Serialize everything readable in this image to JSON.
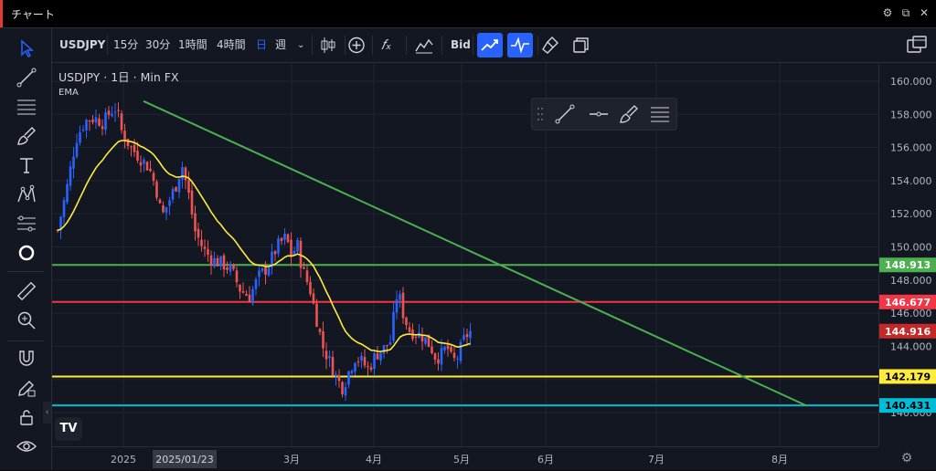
{
  "window": {
    "title": "チャート"
  },
  "toolbar": {
    "symbol": "USDJPY",
    "intervals": [
      "15分",
      "30分",
      "1時間",
      "4時間",
      "日",
      "週"
    ],
    "active_interval": "日",
    "bid_label": "Bid"
  },
  "legend": {
    "symbol": "USDJPY",
    "interval": "1日",
    "separator": "·",
    "source": "Min FX",
    "indicator": "EMA"
  },
  "time_axis": {
    "labels": [
      "2025",
      "3月",
      "4月",
      "5月",
      "6月",
      "7月",
      "8月"
    ],
    "crosshair_date": "2025/01/23"
  },
  "colors": {
    "background": "#131722",
    "candle_up": "#2962ff",
    "candle_down": "#ef5350",
    "ema": "#ffeb3b",
    "trendline": "#4caf50",
    "line_green": "#4caf50",
    "line_red": "#f23645",
    "line_yellow": "#ffeb3b",
    "line_cyan": "#00bcd4",
    "active_button": "#2962ff"
  },
  "chart_data": {
    "type": "candlestick",
    "symbol": "USDJPY",
    "y_ticks": [
      160,
      158,
      156,
      154,
      152,
      150,
      148,
      146,
      144,
      142,
      140
    ],
    "ylim": [
      139.5,
      161
    ],
    "horizontal_lines": [
      {
        "price": 148.913,
        "label": "148.913",
        "color": "#4caf50"
      },
      {
        "price": 146.677,
        "label": "146.677",
        "color": "#f23645"
      },
      {
        "price": 142.179,
        "label": "142.179",
        "color": "#ffeb3b"
      },
      {
        "price": 140.431,
        "label": "140.431",
        "color": "#00bcd4"
      }
    ],
    "current_price": {
      "price": 144.916,
      "label": "144.916",
      "color": "#c62828"
    },
    "trendline": {
      "start_price": 158.8,
      "end_price": 140.4
    },
    "path": [
      [
        0,
        151.0
      ],
      [
        10,
        153.5
      ],
      [
        20,
        156.5
      ],
      [
        30,
        157.6
      ],
      [
        40,
        157.8
      ],
      [
        50,
        157.5
      ],
      [
        58,
        158.2
      ],
      [
        64,
        158.4
      ],
      [
        70,
        157.0
      ],
      [
        80,
        156.0
      ],
      [
        90,
        155.4
      ],
      [
        100,
        154.8
      ],
      [
        108,
        153.5
      ],
      [
        114,
        151.8
      ],
      [
        122,
        152.8
      ],
      [
        130,
        153.8
      ],
      [
        136,
        155.0
      ],
      [
        144,
        153.0
      ],
      [
        150,
        151.0
      ],
      [
        160,
        149.8
      ],
      [
        170,
        149.2
      ],
      [
        180,
        149.0
      ],
      [
        190,
        148.6
      ],
      [
        200,
        147.4
      ],
      [
        210,
        147.0
      ],
      [
        220,
        148.2
      ],
      [
        230,
        148.8
      ],
      [
        240,
        150.0
      ],
      [
        250,
        150.6
      ],
      [
        256,
        149.4
      ],
      [
        262,
        150.2
      ],
      [
        268,
        148.6
      ],
      [
        276,
        147.5
      ],
      [
        282,
        146.0
      ],
      [
        290,
        144.0
      ],
      [
        300,
        142.8
      ],
      [
        306,
        142.0
      ],
      [
        312,
        141.5
      ],
      [
        318,
        142.4
      ],
      [
        326,
        143.4
      ],
      [
        334,
        143.0
      ],
      [
        340,
        142.6
      ],
      [
        348,
        143.5
      ],
      [
        356,
        143.8
      ],
      [
        364,
        144.3
      ],
      [
        372,
        147.4
      ],
      [
        378,
        146.0
      ],
      [
        384,
        145.0
      ],
      [
        392,
        144.8
      ],
      [
        400,
        144.6
      ],
      [
        408,
        144.0
      ],
      [
        414,
        143.3
      ],
      [
        420,
        143.5
      ],
      [
        426,
        144.0
      ],
      [
        432,
        143.0
      ],
      [
        438,
        143.4
      ],
      [
        446,
        144.6
      ],
      [
        452,
        144.9
      ],
      [
        456,
        144.9
      ]
    ]
  }
}
